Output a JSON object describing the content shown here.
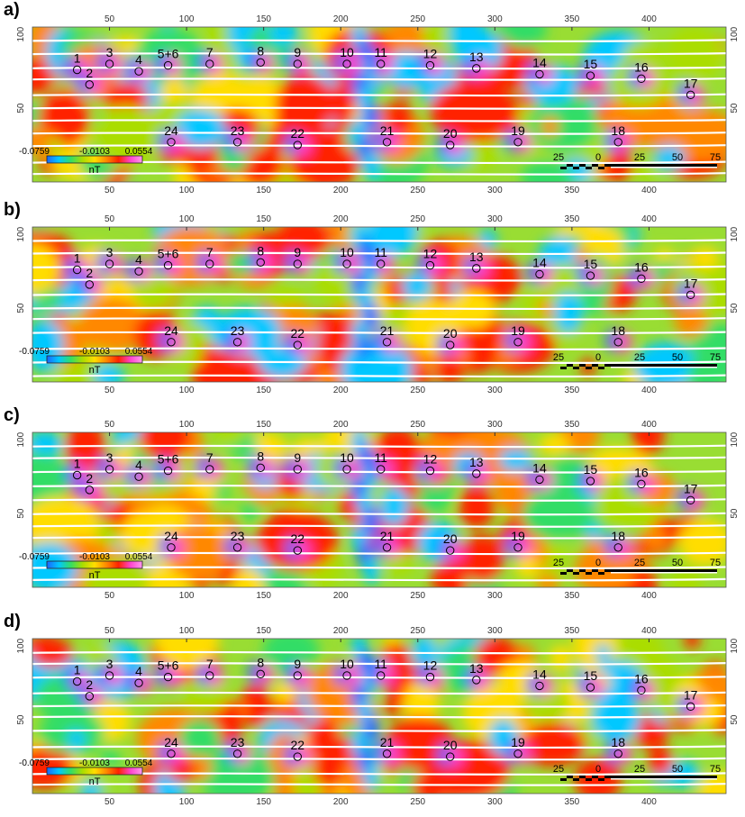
{
  "panels": [
    {
      "label": "a)"
    },
    {
      "label": "b)"
    },
    {
      "label": "c)"
    },
    {
      "label": "d)"
    }
  ],
  "axes": {
    "x_ticks": [
      "50",
      "100",
      "150",
      "200",
      "250",
      "300",
      "350",
      "400"
    ],
    "x_values": [
      50,
      100,
      150,
      200,
      250,
      300,
      350,
      400
    ],
    "y_ticks": [
      "100",
      "50"
    ],
    "y_values": [
      100,
      50
    ],
    "xlim": [
      0,
      450
    ],
    "ylim": [
      0,
      105
    ]
  },
  "colorbar": {
    "labels": [
      "-0.0759",
      "-0.0103",
      "0.0554"
    ],
    "unit": "nT",
    "colors": [
      "#1a66ff",
      "#00c8ff",
      "#33dd66",
      "#aadd00",
      "#ffdd00",
      "#ff8800",
      "#ff2200",
      "#ff44cc",
      "#ff99ee"
    ]
  },
  "scalebar": {
    "labels": [
      "25",
      "0",
      "25",
      "50",
      "75"
    ],
    "values": [
      25,
      0,
      25,
      50,
      75
    ]
  },
  "anomalies": [
    {
      "label": "1",
      "x": 29,
      "y": 76
    },
    {
      "label": "2",
      "x": 37,
      "y": 66
    },
    {
      "label": "3",
      "x": 50,
      "y": 80
    },
    {
      "label": "4",
      "x": 69,
      "y": 75
    },
    {
      "label": "5+6",
      "x": 88,
      "y": 79
    },
    {
      "label": "7",
      "x": 115,
      "y": 80
    },
    {
      "label": "8",
      "x": 148,
      "y": 81
    },
    {
      "label": "9",
      "x": 172,
      "y": 80
    },
    {
      "label": "10",
      "x": 204,
      "y": 80
    },
    {
      "label": "11",
      "x": 226,
      "y": 80
    },
    {
      "label": "12",
      "x": 258,
      "y": 79
    },
    {
      "label": "13",
      "x": 288,
      "y": 77
    },
    {
      "label": "14",
      "x": 329,
      "y": 73
    },
    {
      "label": "15",
      "x": 362,
      "y": 72
    },
    {
      "label": "16",
      "x": 395,
      "y": 70
    },
    {
      "label": "17",
      "x": 427,
      "y": 59
    },
    {
      "label": "18",
      "x": 380,
      "y": 27
    },
    {
      "label": "19",
      "x": 315,
      "y": 27
    },
    {
      "label": "20",
      "x": 271,
      "y": 25
    },
    {
      "label": "21",
      "x": 230,
      "y": 27
    },
    {
      "label": "22",
      "x": 172,
      "y": 25
    },
    {
      "label": "23",
      "x": 133,
      "y": 27
    },
    {
      "label": "24",
      "x": 90,
      "y": 27
    }
  ]
}
